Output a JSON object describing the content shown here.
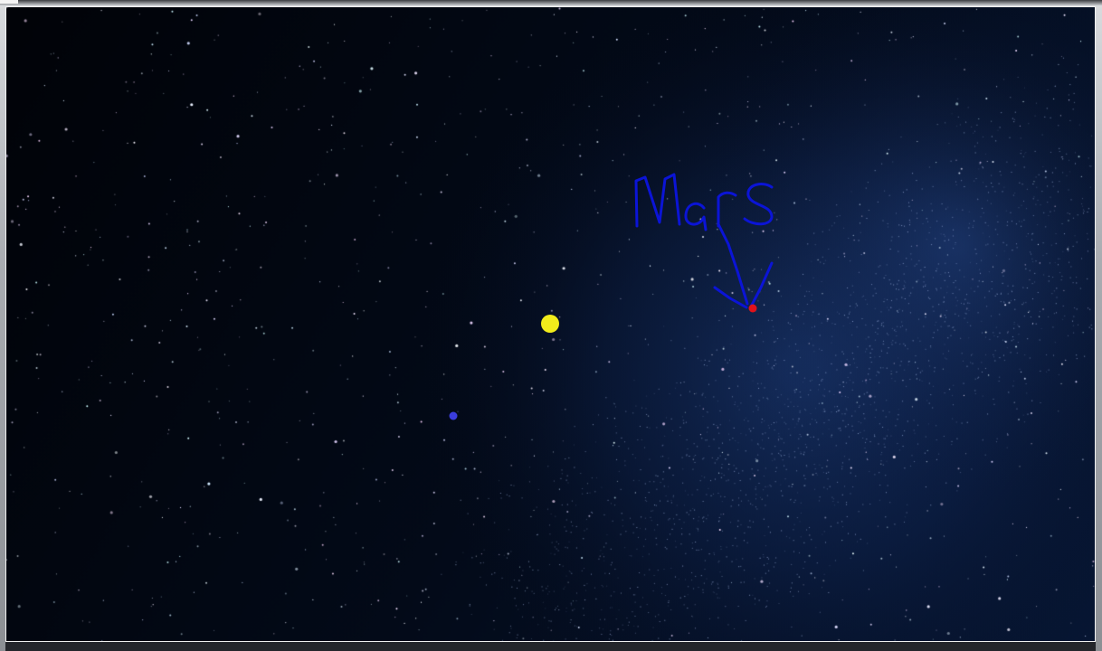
{
  "window": {
    "title": ""
  },
  "drawing": {
    "annotation_text": "Mars",
    "pen_color": "#0b14d6",
    "marker_colors": {
      "yellow_dot": "#f2ec1b",
      "blue_dot": "#3b3ddc",
      "red_dot": "#e0121b"
    }
  },
  "background": {
    "description_colors": {
      "sky_dark": "#02060d",
      "milky_way": "#1a3a78",
      "star": "#ffffff"
    }
  }
}
